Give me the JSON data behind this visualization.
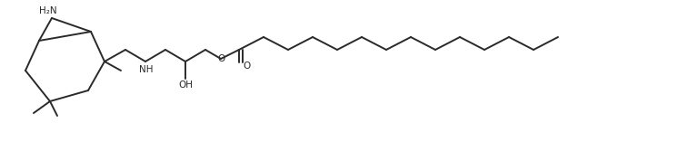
{
  "background_color": "#ffffff",
  "line_color": "#2a2a2a",
  "line_width": 1.4,
  "figsize": [
    7.68,
    1.57
  ],
  "dpi": 100,
  "label_NH": "NH",
  "label_OH": "OH",
  "label_H2N": "H₂N",
  "label_O_ester": "O",
  "label_O_carbonyl": "O",
  "font_size": 7.5
}
